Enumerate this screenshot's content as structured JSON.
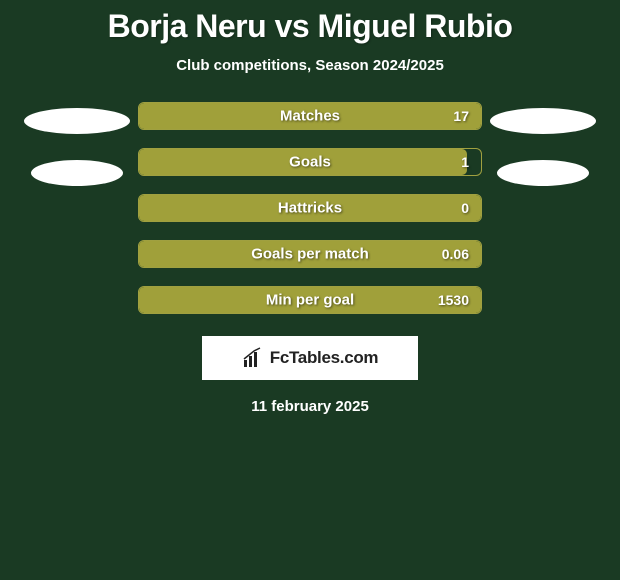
{
  "title": "Borja Neru vs Miguel Rubio",
  "subtitle": "Club competitions, Season 2024/2025",
  "date": "11 february 2025",
  "brand": "FcTables.com",
  "colors": {
    "background": "#1a3a23",
    "bar_fill": "#a0a03a",
    "bar_border": "#a0a040",
    "text": "#ffffff",
    "ellipse": "#ffffff",
    "brand_bg": "#ffffff",
    "brand_text": "#222222"
  },
  "left_ellipses": [
    {
      "width": 106
    },
    {
      "width": 92
    }
  ],
  "right_ellipses": [
    {
      "width": 106
    },
    {
      "width": 92
    }
  ],
  "stats": [
    {
      "label": "Matches",
      "value": "17",
      "fill_pct": 100
    },
    {
      "label": "Goals",
      "value": "1",
      "fill_pct": 96
    },
    {
      "label": "Hattricks",
      "value": "0",
      "fill_pct": 100
    },
    {
      "label": "Goals per match",
      "value": "0.06",
      "fill_pct": 100
    },
    {
      "label": "Min per goal",
      "value": "1530",
      "fill_pct": 100
    }
  ]
}
